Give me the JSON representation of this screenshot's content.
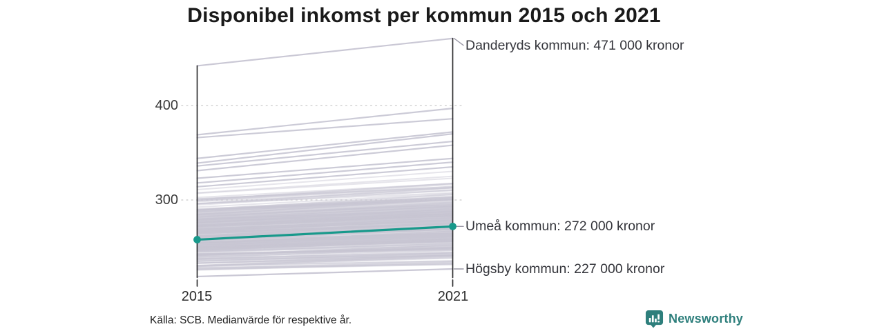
{
  "chart_data": {
    "type": "line",
    "subtype": "slope-chart",
    "title": "Disponibel inkomst per kommun 2015 och 2021",
    "x_labels": [
      "2015",
      "2021"
    ],
    "y_ticks": [
      {
        "value": 400,
        "label": "400"
      },
      {
        "value": 300,
        "label": "300"
      }
    ],
    "grid": "dotted horizontal gridlines at y ticks",
    "legend": "none",
    "unit_hint": "tusental kronor (axis), annotations in kronor",
    "series": [
      {
        "name": "Danderyds kommun",
        "values": [
          442,
          471
        ],
        "highlighted": false,
        "label": "Danderyds kommun: 471 000 kronor"
      },
      {
        "name": "Umeå kommun",
        "values": [
          258,
          272
        ],
        "highlighted": true,
        "label": "Umeå kommun: 272 000 kronor"
      },
      {
        "name": "Högsby kommun",
        "values": [
          219,
          227
        ],
        "highlighted": false,
        "label": "Högsby kommun: 227 000 kronor"
      }
    ],
    "background_outlier_pairs": [
      [
        369,
        397
      ],
      [
        366,
        386
      ],
      [
        344,
        372
      ],
      [
        339,
        370
      ],
      [
        336,
        362
      ],
      [
        331,
        358
      ],
      [
        323,
        344
      ],
      [
        318,
        340
      ],
      [
        314,
        335
      ]
    ],
    "background_bundle": {
      "description": "approx. 280 unlabeled Swedish municipalities, 2015 values ~224-313 rising ~+7 to +20 by 2021",
      "count": 278,
      "base_2015": 224,
      "spread_2015": 89,
      "skew": 1.25,
      "delta_base": 6,
      "delta_slope": 0.11,
      "delta_jitter": 7,
      "seed": 42
    }
  },
  "footer": {
    "source": "Källa: SCB. Medianvärde för respektive år.",
    "brand": "Newsworthy"
  },
  "colors": {
    "accent_teal": "#18998b",
    "line_gray": "#c7c5d3",
    "leader_gray": "#9a98a6",
    "axis": "#2f2f31",
    "grid_dot": "#d2d2d2",
    "title_text": "#1a1a1a",
    "annotation_text": "#34353b",
    "logo_teal": "#2e7f7c"
  }
}
